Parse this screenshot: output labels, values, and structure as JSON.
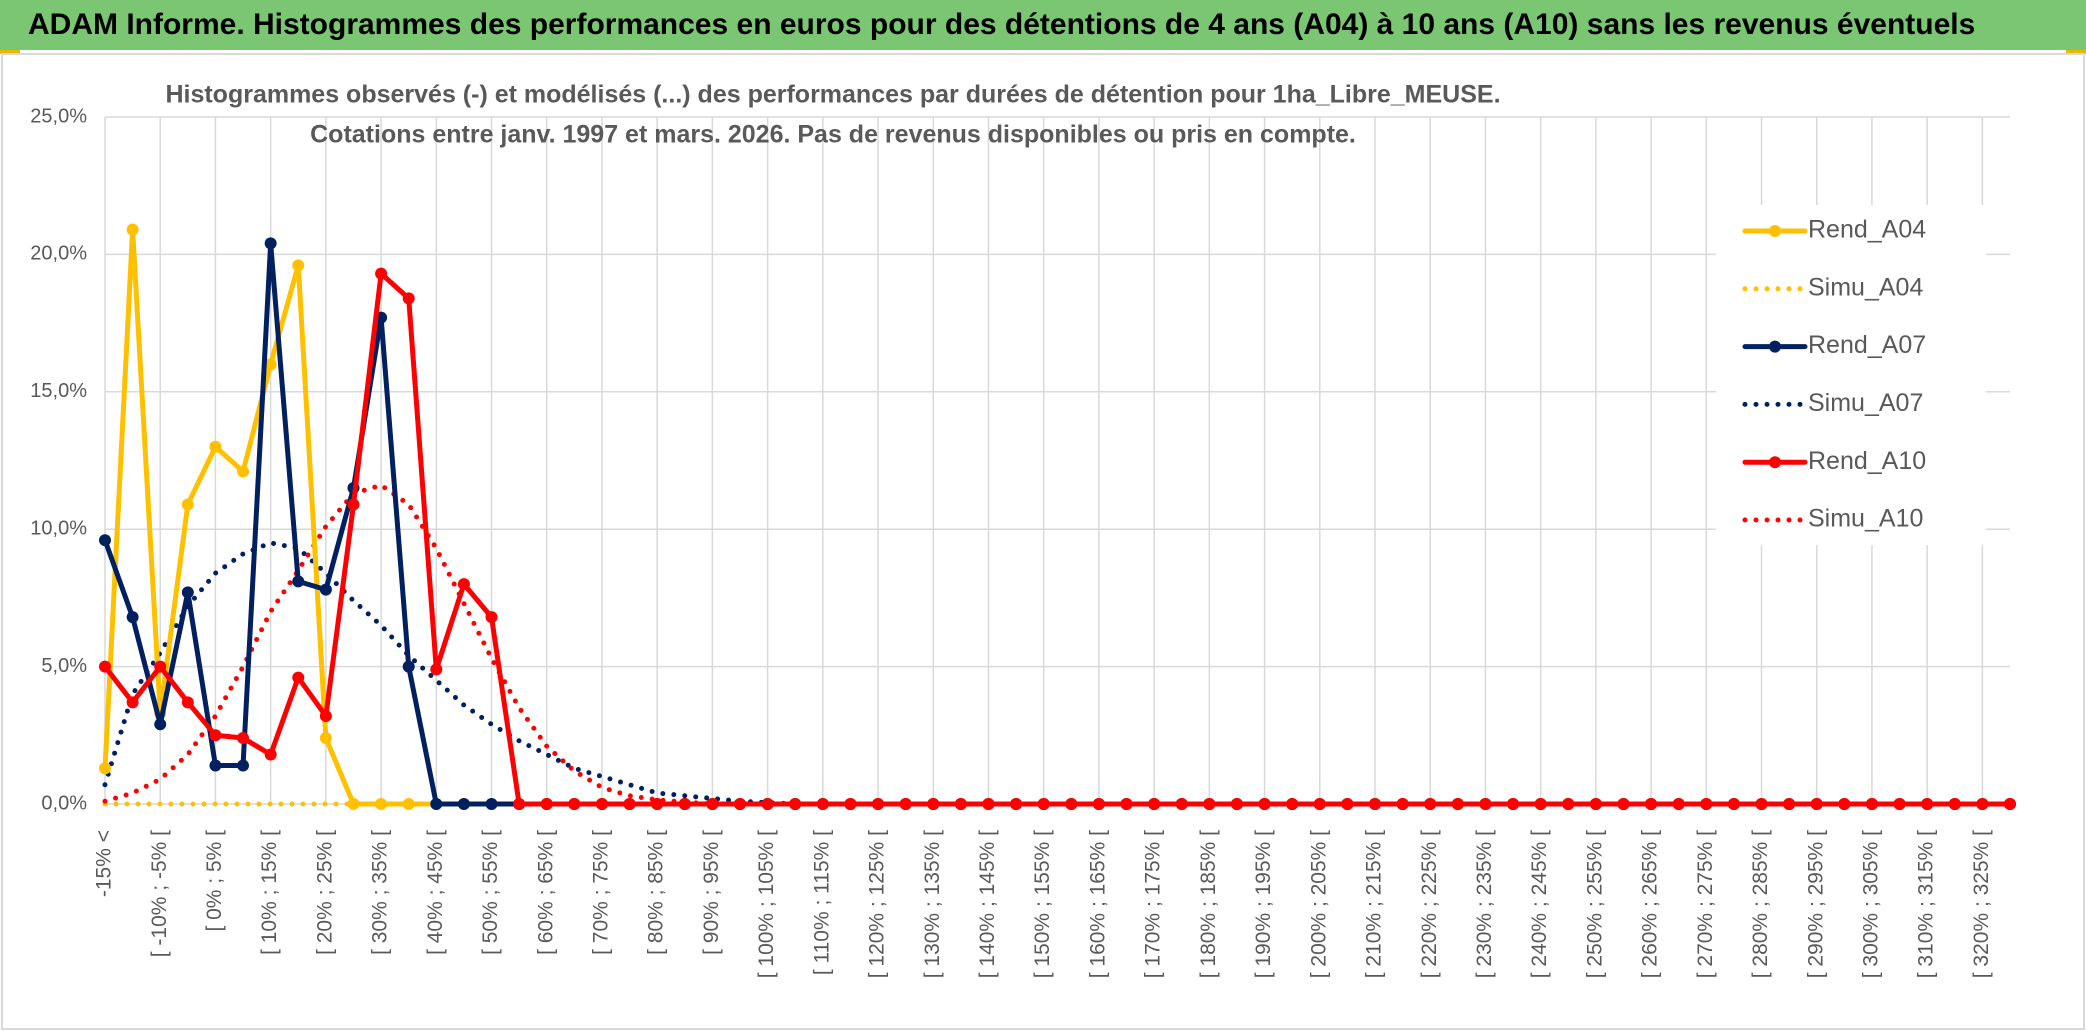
{
  "header": {
    "title": "ADAM Informe. Histogrammes des performances en euros pour des détentions de 4 ans (A04) à 10 ans (A10) sans les revenus éventuels"
  },
  "chart_data": {
    "type": "line",
    "title": "Histogrammes observés (-) et modélisés (...) des performances par durées de détention pour 1ha_Libre_MEUSE.",
    "subtitle": "Cotations entre janv. 1997 et mars. 2026. Pas de revenus disponibles ou pris en compte.",
    "categories": [
      "-15% <",
      null,
      "[ -10% ; -5% [",
      null,
      "[ 0% ; 5% [",
      null,
      "[ 10% ; 15% [",
      null,
      "[ 20% ; 25% [",
      null,
      "[ 30% ; 35% [",
      null,
      "[ 40% ; 45% [",
      null,
      "[ 50% ; 55% [",
      null,
      "[ 60% ; 65% [",
      null,
      "[ 70% ; 75% [",
      null,
      "[ 80% ; 85% [",
      null,
      "[ 90% ; 95% [",
      null,
      "[ 100% ; 105% [",
      null,
      "[ 110% ; 115% [",
      null,
      "[ 120% ; 125% [",
      null,
      "[ 130% ; 135% [",
      null,
      "[ 140% ; 145% [",
      null,
      "[ 150% ; 155% [",
      null,
      "[ 160% ; 165% [",
      null,
      "[ 170% ; 175% [",
      null,
      "[ 180% ; 185% [",
      null,
      "[ 190% ; 195% [",
      null,
      "[ 200% ; 205% [",
      null,
      "[ 210% ; 215% [",
      null,
      "[ 220% ; 225% [",
      null,
      "[ 230% ; 235% [",
      null,
      "[ 240% ; 245% [",
      null,
      "[ 250% ; 255% [",
      null,
      "[ 260% ; 265% [",
      null,
      "[ 270% ; 275% [",
      null,
      "[ 280% ; 285% [",
      null,
      "[ 290% ; 295% [",
      null,
      "[ 300% ; 305% [",
      null,
      "[ 310% ; 315% [",
      null,
      "[ 320% ; 325% [",
      null
    ],
    "series": [
      {
        "name": "Rend_A04",
        "color": "#ffc000",
        "style": "solid",
        "markers": true,
        "values": [
          1.3,
          20.9,
          3.3,
          10.9,
          13.0,
          12.1,
          16.0,
          19.6,
          2.4,
          0,
          0,
          0,
          0,
          0,
          0,
          0,
          0,
          0,
          0,
          0,
          0,
          0,
          0,
          0,
          0,
          0,
          0,
          0,
          0,
          0,
          0,
          0,
          0,
          0,
          0,
          0,
          0,
          0,
          0,
          0,
          0,
          0,
          0,
          0,
          0,
          0,
          0,
          0,
          0,
          0,
          0,
          0,
          0,
          0,
          0,
          0,
          0,
          0,
          0,
          0,
          0,
          0,
          0,
          0,
          0,
          0,
          0,
          0,
          0,
          0
        ]
      },
      {
        "name": "Simu_A04",
        "color": "#ffc000",
        "style": "dotted",
        "markers": false,
        "values": [
          0,
          0,
          0,
          0,
          0,
          0,
          0,
          0,
          0,
          0,
          0,
          0,
          0,
          0,
          0,
          0,
          0,
          0,
          0,
          0,
          0,
          0,
          0,
          0,
          0,
          0,
          0,
          0,
          0,
          0,
          0,
          0,
          0,
          0,
          0,
          0,
          0,
          0,
          0,
          0,
          0,
          0,
          0,
          0,
          0,
          0,
          0,
          0,
          0,
          0,
          0,
          0,
          0,
          0,
          0,
          0,
          0,
          0,
          0,
          0,
          0,
          0,
          0,
          0,
          0,
          0,
          0,
          0,
          0,
          0
        ]
      },
      {
        "name": "Rend_A07",
        "color": "#002060",
        "style": "solid",
        "markers": true,
        "values": [
          9.6,
          6.8,
          2.9,
          7.7,
          1.4,
          1.4,
          20.4,
          8.1,
          7.8,
          11.5,
          17.7,
          5.0,
          0,
          0,
          0,
          0,
          0,
          0,
          0,
          0,
          0,
          0,
          0,
          0,
          0,
          0,
          0,
          0,
          0,
          0,
          0,
          0,
          0,
          0,
          0,
          0,
          0,
          0,
          0,
          0,
          0,
          0,
          0,
          0,
          0,
          0,
          0,
          0,
          0,
          0,
          0,
          0,
          0,
          0,
          0,
          0,
          0,
          0,
          0,
          0,
          0,
          0,
          0,
          0,
          0,
          0,
          0,
          0,
          0,
          0
        ]
      },
      {
        "name": "Simu_A07",
        "color": "#002060",
        "style": "dotted",
        "markers": false,
        "values": [
          0.7,
          4.0,
          5.5,
          7.2,
          8.4,
          9.1,
          9.5,
          9.3,
          8.4,
          7.4,
          6.5,
          5.4,
          4.5,
          3.6,
          2.9,
          2.3,
          1.8,
          1.3,
          1.0,
          0.7,
          0.4,
          0.3,
          0.2,
          0.1,
          0.05,
          0,
          0,
          0,
          0,
          0,
          0,
          0,
          0,
          0,
          0,
          0,
          0,
          0,
          0,
          0,
          0,
          0,
          0,
          0,
          0,
          0,
          0,
          0,
          0,
          0,
          0,
          0,
          0,
          0,
          0,
          0,
          0,
          0,
          0,
          0,
          0,
          0,
          0,
          0,
          0,
          0,
          0,
          0,
          0,
          0
        ]
      },
      {
        "name": "Rend_A10",
        "color": "#ff0000",
        "style": "solid",
        "markers": true,
        "values": [
          5.0,
          3.7,
          5.0,
          3.7,
          2.5,
          2.4,
          1.8,
          4.6,
          3.2,
          10.9,
          19.3,
          18.4,
          4.9,
          8.0,
          6.8,
          0,
          0,
          0,
          0,
          0,
          0,
          0,
          0,
          0,
          0,
          0,
          0,
          0,
          0,
          0,
          0,
          0,
          0,
          0,
          0,
          0,
          0,
          0,
          0,
          0,
          0,
          0,
          0,
          0,
          0,
          0,
          0,
          0,
          0,
          0,
          0,
          0,
          0,
          0,
          0,
          0,
          0,
          0,
          0,
          0,
          0,
          0,
          0,
          0,
          0,
          0,
          0,
          0,
          0,
          0
        ]
      },
      {
        "name": "Simu_A10",
        "color": "#ff0000",
        "style": "dotted",
        "markers": false,
        "values": [
          0.1,
          0.4,
          0.9,
          1.8,
          3.2,
          5.0,
          7.0,
          8.5,
          10.1,
          11.3,
          11.6,
          10.9,
          9.3,
          7.3,
          5.3,
          3.5,
          2.1,
          1.2,
          0.6,
          0.3,
          0.15,
          0.07,
          0,
          0,
          0,
          0,
          0,
          0,
          0,
          0,
          0,
          0,
          0,
          0,
          0,
          0,
          0,
          0,
          0,
          0,
          0,
          0,
          0,
          0,
          0,
          0,
          0,
          0,
          0,
          0,
          0,
          0,
          0,
          0,
          0,
          0,
          0,
          0,
          0,
          0,
          0,
          0,
          0,
          0,
          0,
          0,
          0,
          0,
          0,
          0
        ]
      }
    ],
    "ylim": [
      0,
      25
    ],
    "yticks": [
      {
        "value": 0,
        "label": "0,0%"
      },
      {
        "value": 5,
        "label": "5,0%"
      },
      {
        "value": 10,
        "label": "10,0%"
      },
      {
        "value": 15,
        "label": "15,0%"
      },
      {
        "value": 20,
        "label": "20,0%"
      },
      {
        "value": 25,
        "label": "25,0%"
      }
    ],
    "grid": true,
    "legend": "right"
  }
}
